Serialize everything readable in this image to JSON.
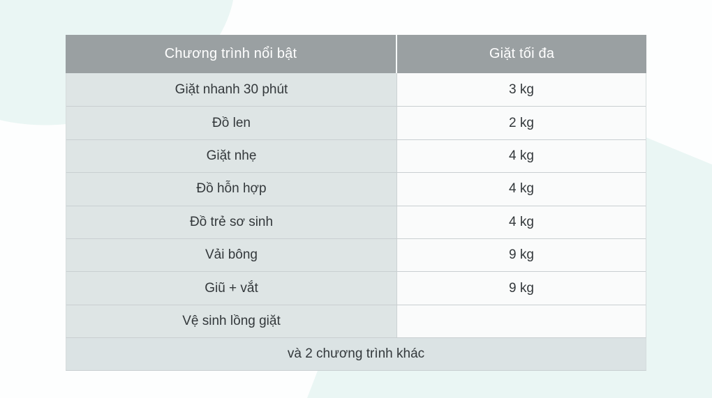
{
  "colors": {
    "page_background": "#fdfefe",
    "mint_accent": "#eaf6f4",
    "header_background": "#9aa0a2",
    "header_text": "#ffffff",
    "left_column_background": "#dee5e5",
    "right_column_background": "#fafbfb",
    "footer_row_background": "#dbe3e4",
    "body_text": "#33383b",
    "grid_line": "#c9cfd1"
  },
  "chart_data": {
    "type": "table",
    "columns": [
      "Chương trình nổi bật",
      "Giặt tối đa"
    ],
    "rows": [
      [
        "Giặt nhanh 30 phút",
        "3 kg"
      ],
      [
        "Đồ len",
        "2 kg"
      ],
      [
        "Giặt nhẹ",
        "4 kg"
      ],
      [
        "Đồ hỗn hợp",
        "4 kg"
      ],
      [
        "Đồ trẻ sơ sinh",
        "4 kg"
      ],
      [
        "Vải bông",
        "9 kg"
      ],
      [
        "Giũ + vắt",
        "9 kg"
      ],
      [
        "Vệ sinh lồng giặt",
        ""
      ]
    ],
    "footer": "và 2 chương trình khác"
  }
}
